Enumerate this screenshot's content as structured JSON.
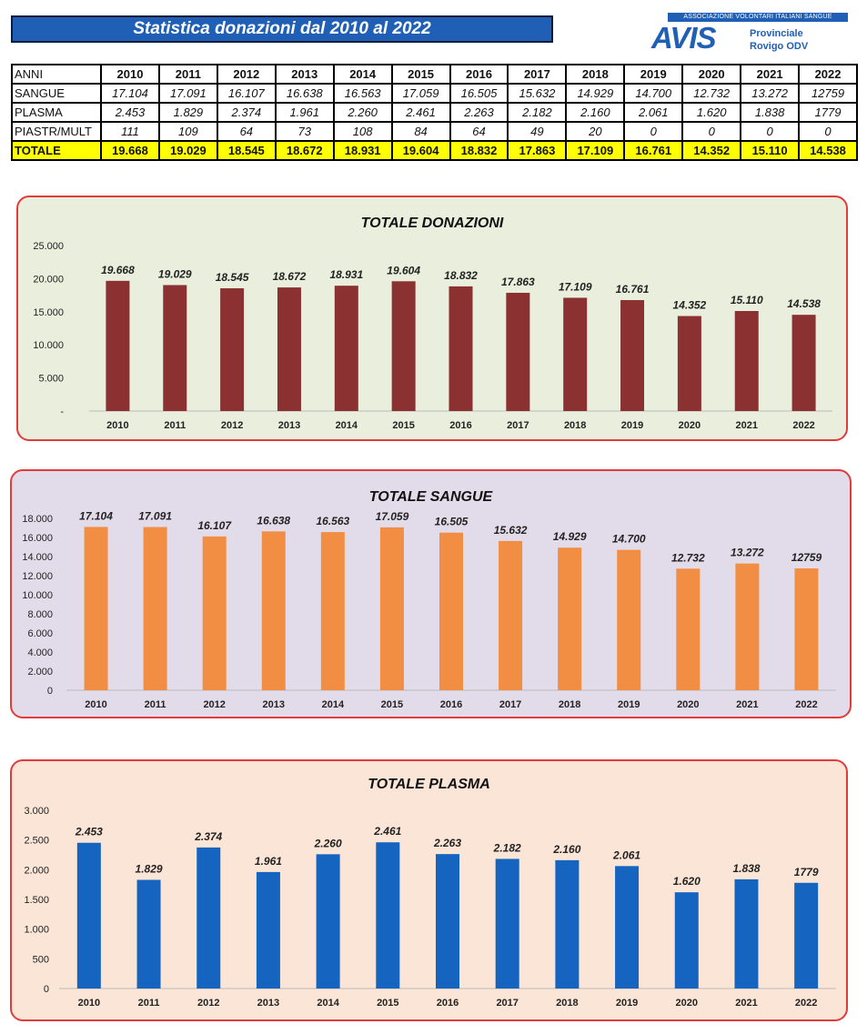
{
  "header": {
    "title": "Statistica donazioni dal 2010 al 2022",
    "logo_banner": "ASSOCIAZIONE VOLONTARI ITALIANI SANGUE",
    "logo_word": "AVIS",
    "logo_line1": "Provinciale",
    "logo_line2": "Rovigo ODV"
  },
  "colors": {
    "title_bg": "#1f5fb6",
    "totale_row": "#ffff00",
    "chart_border": "#e23b3b",
    "donazioni_bg": "#e9efdc",
    "donazioni_bar": "#8b3131",
    "sangue_bg": "#e2dcea",
    "sangue_bar": "#f28e43",
    "plasma_bg": "#fbe5d6",
    "plasma_bar": "#1565c0"
  },
  "table": {
    "header_label": "ANNI",
    "years": [
      "2010",
      "2011",
      "2012",
      "2013",
      "2014",
      "2015",
      "2016",
      "2017",
      "2018",
      "2019",
      "2020",
      "2021",
      "2022"
    ],
    "rows": [
      {
        "label": "SANGUE",
        "values": [
          "17.104",
          "17.091",
          "16.107",
          "16.638",
          "16.563",
          "17.059",
          "16.505",
          "15.632",
          "14.929",
          "14.700",
          "12.732",
          "13.272",
          "12759"
        ]
      },
      {
        "label": "PLASMA",
        "values": [
          "2.453",
          "1.829",
          "2.374",
          "1.961",
          "2.260",
          "2.461",
          "2.263",
          "2.182",
          "2.160",
          "2.061",
          "1.620",
          "1.838",
          "1779"
        ]
      },
      {
        "label": "PIASTR/MULT",
        "values": [
          "111",
          "109",
          "64",
          "73",
          "108",
          "84",
          "64",
          "49",
          "20",
          "0",
          "0",
          "0",
          "0"
        ]
      }
    ],
    "total": {
      "label": "TOTALE",
      "values": [
        "19.668",
        "19.029",
        "18.545",
        "18.672",
        "18.931",
        "19.604",
        "18.832",
        "17.863",
        "17.109",
        "16.761",
        "14.352",
        "15.110",
        "14.538"
      ]
    }
  },
  "chart_data": [
    {
      "type": "bar",
      "title": "TOTALE DONAZIONI",
      "categories": [
        "2010",
        "2011",
        "2012",
        "2013",
        "2014",
        "2015",
        "2016",
        "2017",
        "2018",
        "2019",
        "2020",
        "2021",
        "2022"
      ],
      "values": [
        19668,
        19029,
        18545,
        18672,
        18931,
        19604,
        18832,
        17863,
        17109,
        16761,
        14352,
        15110,
        14538
      ],
      "data_labels": [
        "19.668",
        "19.029",
        "18.545",
        "18.672",
        "18.931",
        "19.604",
        "18.832",
        "17.863",
        "17.109",
        "16.761",
        "14.352",
        "15.110",
        "14.538"
      ],
      "ylim": [
        0,
        25000
      ],
      "yticks": [
        0,
        5000,
        10000,
        15000,
        20000,
        25000
      ],
      "ytick_labels": [
        "-",
        "5.000",
        "10.000",
        "15.000",
        "20.000",
        "25.000"
      ],
      "xlabel": "",
      "ylabel": "",
      "grid": false
    },
    {
      "type": "bar",
      "title": "TOTALE   SANGUE",
      "categories": [
        "2010",
        "2011",
        "2012",
        "2013",
        "2014",
        "2015",
        "2016",
        "2017",
        "2018",
        "2019",
        "2020",
        "2021",
        "2022"
      ],
      "values": [
        17104,
        17091,
        16107,
        16638,
        16563,
        17059,
        16505,
        15632,
        14929,
        14700,
        12732,
        13272,
        12759
      ],
      "data_labels": [
        "17.104",
        "17.091",
        "16.107",
        "16.638",
        "16.563",
        "17.059",
        "16.505",
        "15.632",
        "14.929",
        "14.700",
        "12.732",
        "13.272",
        "12759"
      ],
      "ylim": [
        0,
        18000
      ],
      "yticks": [
        0,
        2000,
        4000,
        6000,
        8000,
        10000,
        12000,
        14000,
        16000,
        18000
      ],
      "ytick_labels": [
        "0",
        "2.000",
        "4.000",
        "6.000",
        "8.000",
        "10.000",
        "12.000",
        "14.000",
        "16.000",
        "18.000"
      ],
      "xlabel": "",
      "ylabel": "",
      "grid": false
    },
    {
      "type": "bar",
      "title": "TOTALE   PLASMA",
      "categories": [
        "2010",
        "2011",
        "2012",
        "2013",
        "2014",
        "2015",
        "2016",
        "2017",
        "2018",
        "2019",
        "2020",
        "2021",
        "2022"
      ],
      "values": [
        2453,
        1829,
        2374,
        1961,
        2260,
        2461,
        2263,
        2182,
        2160,
        2061,
        1620,
        1838,
        1779
      ],
      "data_labels": [
        "2.453",
        "1.829",
        "2.374",
        "1.961",
        "2.260",
        "2.461",
        "2.263",
        "2.182",
        "2.160",
        "2.061",
        "1.620",
        "1.838",
        "1779"
      ],
      "ylim": [
        0,
        3000
      ],
      "yticks": [
        0,
        500,
        1000,
        1500,
        2000,
        2500,
        3000
      ],
      "ytick_labels": [
        "0",
        "500",
        "1.000",
        "1.500",
        "2.000",
        "2.500",
        "3.000"
      ],
      "xlabel": "",
      "ylabel": "",
      "grid": false
    }
  ]
}
